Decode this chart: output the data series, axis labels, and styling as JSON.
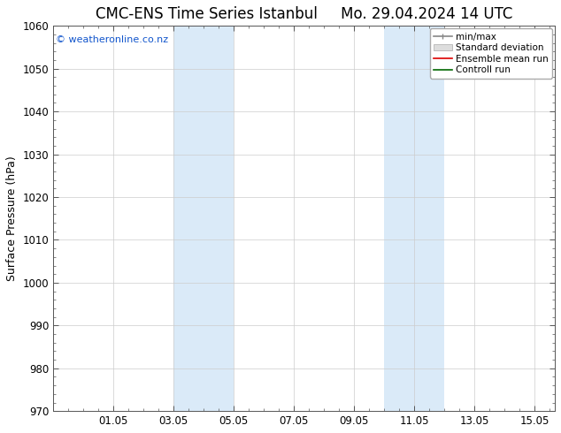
{
  "title": "CMC-ENS Time Series Istanbul",
  "title2": "Mo. 29.04.2024 14 UTC",
  "ylabel": "Surface Pressure (hPa)",
  "ylim": [
    970,
    1060
  ],
  "yticks": [
    970,
    980,
    990,
    1000,
    1010,
    1020,
    1030,
    1040,
    1050,
    1060
  ],
  "xtick_labels": [
    "01.05",
    "03.05",
    "05.05",
    "07.05",
    "09.05",
    "11.05",
    "13.05",
    "15.05"
  ],
  "xtick_positions": [
    2,
    4,
    6,
    8,
    10,
    12,
    14,
    16
  ],
  "xlim": [
    0,
    16.67
  ],
  "shaded_bands": [
    {
      "x_start": 4.0,
      "x_end": 6.0
    },
    {
      "x_start": 11.0,
      "x_end": 13.0
    }
  ],
  "shaded_color": "#daeaf8",
  "watermark": "© weatheronline.co.nz",
  "watermark_color": "#1155cc",
  "legend_items": [
    {
      "label": "min/max",
      "color": "#888888",
      "style": "line_caps"
    },
    {
      "label": "Standard deviation",
      "color": "#cccccc",
      "style": "filled"
    },
    {
      "label": "Ensemble mean run",
      "color": "#dd0000",
      "style": "line"
    },
    {
      "label": "Controll run",
      "color": "#006600",
      "style": "line"
    }
  ],
  "background_color": "#ffffff",
  "plot_bg_color": "#ffffff",
  "border_color": "#000000",
  "grid_color": "#cccccc",
  "title_fontsize": 12,
  "axis_fontsize": 9,
  "tick_fontsize": 8.5,
  "watermark_fontsize": 8,
  "legend_fontsize": 7.5
}
